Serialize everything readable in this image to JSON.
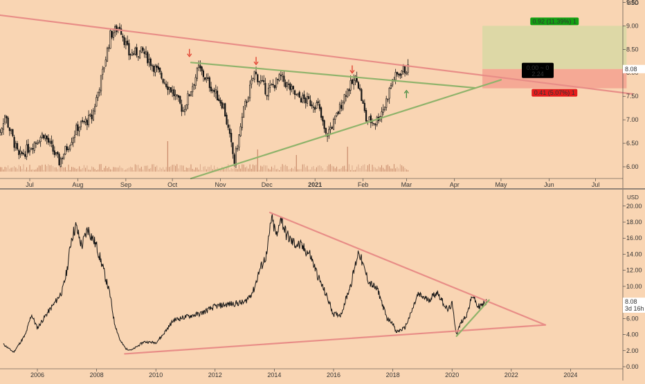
{
  "colors": {
    "background": "#f9d5b3",
    "candle": "#151515",
    "volume": "#d9a98a",
    "volume_up": "#c88a6a",
    "resistance_line": "#e88d87",
    "support_line": "#8fb36b",
    "arrow_down": "#e03a2a",
    "arrow_up": "#3f8a3f",
    "target_zone": "#ddd8a6",
    "stop_zone": "#f5a995",
    "target_label": "#12a012",
    "stop_label": "#e41c1c",
    "info_label": "#000000",
    "price_label": "#ffffff"
  },
  "chart_data": [
    {
      "id": "top",
      "type": "candlestick",
      "unit_label": "USD",
      "x_tick_labels": [
        "Jul",
        "Aug",
        "Sep",
        "Oct",
        "Nov",
        "Dec",
        "2021",
        "Feb",
        "Mar",
        "Apr",
        "May",
        "Jun",
        "Jul"
      ],
      "x_ticks": [
        "2020-07-01",
        "2020-08-01",
        "2020-09-01",
        "2020-10-01",
        "2020-11-01",
        "2020-12-01",
        "2021-01-01",
        "2021-02-01",
        "2021-03-01",
        "2021-04-01",
        "2021-05-01",
        "2021-06-01",
        "2021-07-01"
      ],
      "ylim": [
        5.75,
        9.55
      ],
      "y_ticks": [
        6.0,
        6.5,
        7.0,
        7.5,
        8.0,
        8.5,
        9.0,
        9.5
      ],
      "y_tick_labels": [
        "6.00",
        "6.50",
        "7.00",
        "7.50",
        "8.00",
        "8.50",
        "9.00",
        "9.50"
      ],
      "last_price_label": "8.08",
      "last_price": 8.08,
      "price_anchors": [
        [
          "2020-06-10",
          6.55
        ],
        [
          "2020-06-15",
          7.1
        ],
        [
          "2020-06-24",
          6.2
        ],
        [
          "2020-07-10",
          6.7
        ],
        [
          "2020-07-20",
          6.1
        ],
        [
          "2020-08-01",
          6.85
        ],
        [
          "2020-08-10",
          7.05
        ],
        [
          "2020-08-17",
          8.0
        ],
        [
          "2020-08-22",
          8.8
        ],
        [
          "2020-08-28",
          9.0
        ],
        [
          "2020-09-03",
          8.4
        ],
        [
          "2020-09-12",
          8.45
        ],
        [
          "2020-09-22",
          8.0
        ],
        [
          "2020-10-01",
          7.6
        ],
        [
          "2020-10-08",
          7.2
        ],
        [
          "2020-10-18",
          8.1
        ],
        [
          "2020-10-26",
          7.7
        ],
        [
          "2020-11-03",
          7.3
        ],
        [
          "2020-11-10",
          6.1
        ],
        [
          "2020-11-16",
          7.2
        ],
        [
          "2020-11-23",
          8.0
        ],
        [
          "2020-12-01",
          7.6
        ],
        [
          "2020-12-10",
          7.9
        ],
        [
          "2020-12-20",
          7.5
        ],
        [
          "2021-01-03",
          7.3
        ],
        [
          "2021-01-08",
          6.65
        ],
        [
          "2021-01-14",
          7.0
        ],
        [
          "2021-01-21",
          7.6
        ],
        [
          "2021-01-28",
          7.9
        ],
        [
          "2021-02-03",
          7.0
        ],
        [
          "2021-02-09",
          6.95
        ],
        [
          "2021-02-15",
          7.3
        ],
        [
          "2021-02-20",
          7.85
        ],
        [
          "2021-02-26",
          8.05
        ],
        [
          "2021-03-02",
          8.08
        ]
      ],
      "volume_spikes": [
        [
          "2020-09-28",
          0.55
        ],
        [
          "2020-11-25",
          0.4
        ],
        [
          "2021-01-22",
          0.45
        ],
        [
          "2020-12-20",
          0.3
        ]
      ],
      "trendlines": [
        {
          "id": "resistance",
          "color_key": "resistance_line",
          "from": [
            "2020-05-25",
            9.3
          ],
          "to": [
            "2021-07-25",
            7.55
          ]
        },
        {
          "id": "triangle-top",
          "color_key": "support_line",
          "from": [
            "2020-10-13",
            8.22
          ],
          "to": [
            "2021-04-14",
            7.68
          ]
        },
        {
          "id": "support",
          "color_key": "support_line",
          "from": [
            "2020-10-13",
            5.75
          ],
          "to": [
            "2021-05-01",
            7.85
          ]
        }
      ],
      "arrows": [
        {
          "direction": "down",
          "date": "2020-10-12",
          "price": 8.42
        },
        {
          "direction": "down",
          "date": "2020-11-24",
          "price": 8.25
        },
        {
          "direction": "down",
          "date": "2021-01-25",
          "price": 8.07
        },
        {
          "direction": "up",
          "date": "2021-03-01",
          "price": 7.55
        }
      ],
      "position_tool": {
        "start": "2021-04-19",
        "end": "2021-07-21",
        "entry": 8.08,
        "target": 9.0,
        "stop": 7.67,
        "target_label": "0.92 (11.39%) 1",
        "stop_label": "0.41 (5.07%) 1",
        "info_line1": "0.00 ~ 0",
        "info_line2": "2.24"
      }
    },
    {
      "id": "bottom",
      "type": "line",
      "unit_label": "USD",
      "x_tick_labels": [
        "2006",
        "2008",
        "2010",
        "2012",
        "2014",
        "2016",
        "2018",
        "2020",
        "2022",
        "2024"
      ],
      "x_ticks": [
        2006,
        2008,
        2010,
        2012,
        2014,
        2016,
        2018,
        2020,
        2022,
        2024
      ],
      "ylim": [
        0.0,
        20.5
      ],
      "y_ticks": [
        0,
        2,
        4,
        6,
        8,
        10,
        12,
        14,
        16,
        18,
        20
      ],
      "y_tick_labels": [
        "0.00",
        "2.00",
        "4.00",
        "6.00",
        "8.00",
        "10.00",
        "12.00",
        "14.00",
        "16.00",
        "18.00",
        "20.00"
      ],
      "last_price_label": "8.08",
      "last_price": 8.08,
      "time_label": "3d 16h",
      "price_anchors": [
        [
          2004.85,
          2.8
        ],
        [
          2005.2,
          1.8
        ],
        [
          2005.6,
          4.0
        ],
        [
          2005.8,
          6.5
        ],
        [
          2006.0,
          4.8
        ],
        [
          2006.3,
          6.5
        ],
        [
          2006.6,
          8.0
        ],
        [
          2006.85,
          9.5
        ],
        [
          2007.0,
          12.0
        ],
        [
          2007.15,
          16.0
        ],
        [
          2007.3,
          17.5
        ],
        [
          2007.5,
          15.0
        ],
        [
          2007.7,
          17.2
        ],
        [
          2008.0,
          15.0
        ],
        [
          2008.2,
          12.5
        ],
        [
          2008.45,
          9.0
        ],
        [
          2008.6,
          5.5
        ],
        [
          2008.8,
          3.2
        ],
        [
          2009.0,
          2.2
        ],
        [
          2009.2,
          2.1
        ],
        [
          2009.6,
          3.1
        ],
        [
          2010.0,
          3.0
        ],
        [
          2010.2,
          3.8
        ],
        [
          2010.6,
          5.8
        ],
        [
          2011.0,
          6.2
        ],
        [
          2011.5,
          6.6
        ],
        [
          2012.0,
          7.5
        ],
        [
          2012.5,
          7.8
        ],
        [
          2013.0,
          8.0
        ],
        [
          2013.3,
          9.5
        ],
        [
          2013.5,
          12.0
        ],
        [
          2013.75,
          14.0
        ],
        [
          2013.9,
          18.5
        ],
        [
          2014.1,
          16.0
        ],
        [
          2014.2,
          18.8
        ],
        [
          2014.4,
          16.5
        ],
        [
          2014.6,
          15.5
        ],
        [
          2014.9,
          15.0
        ],
        [
          2015.2,
          14.0
        ],
        [
          2015.5,
          11.0
        ],
        [
          2015.8,
          8.5
        ],
        [
          2016.0,
          6.5
        ],
        [
          2016.25,
          6.5
        ],
        [
          2016.6,
          10.5
        ],
        [
          2016.85,
          14.5
        ],
        [
          2017.0,
          12.5
        ],
        [
          2017.2,
          10.5
        ],
        [
          2017.5,
          9.5
        ],
        [
          2017.8,
          6.0
        ],
        [
          2018.0,
          5.5
        ],
        [
          2018.1,
          4.3
        ],
        [
          2018.4,
          4.8
        ],
        [
          2018.6,
          6.5
        ],
        [
          2018.85,
          9.0
        ],
        [
          2019.2,
          8.3
        ],
        [
          2019.5,
          9.3
        ],
        [
          2019.85,
          7.0
        ],
        [
          2020.0,
          7.8
        ],
        [
          2020.15,
          4.0
        ],
        [
          2020.3,
          5.5
        ],
        [
          2020.5,
          6.5
        ],
        [
          2020.7,
          9.0
        ],
        [
          2020.85,
          7.5
        ],
        [
          2021.0,
          7.6
        ],
        [
          2021.16,
          8.08
        ]
      ],
      "trendlines": [
        {
          "id": "long-resistance",
          "color_key": "resistance_line",
          "from": [
            2013.85,
            19.2
          ],
          "to": [
            2023.15,
            5.2
          ]
        },
        {
          "id": "long-support",
          "color_key": "resistance_line",
          "from": [
            2008.95,
            1.6
          ],
          "to": [
            2023.15,
            5.2
          ]
        },
        {
          "id": "recent-support",
          "color_key": "support_line",
          "from": [
            2020.15,
            3.8
          ],
          "to": [
            2021.25,
            8.3
          ]
        }
      ]
    }
  ]
}
